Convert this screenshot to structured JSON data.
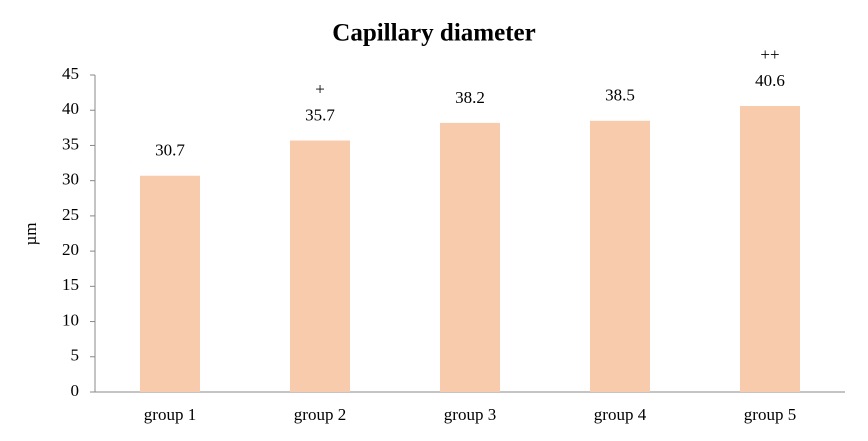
{
  "chart_data": {
    "type": "bar",
    "title": "Capillary diameter",
    "y_label": "µm",
    "categories": [
      "group 1",
      "group 2",
      "group 3",
      "group 4",
      "group 5"
    ],
    "values": [
      30.7,
      35.7,
      38.2,
      38.5,
      40.6
    ],
    "markers": [
      null,
      "+",
      null,
      null,
      "++"
    ],
    "color": "#f8cbad",
    "ylim": [
      0,
      45
    ],
    "yticks": [
      0,
      5,
      10,
      15,
      20,
      25,
      30,
      35,
      40,
      45
    ],
    "grid": false
  }
}
